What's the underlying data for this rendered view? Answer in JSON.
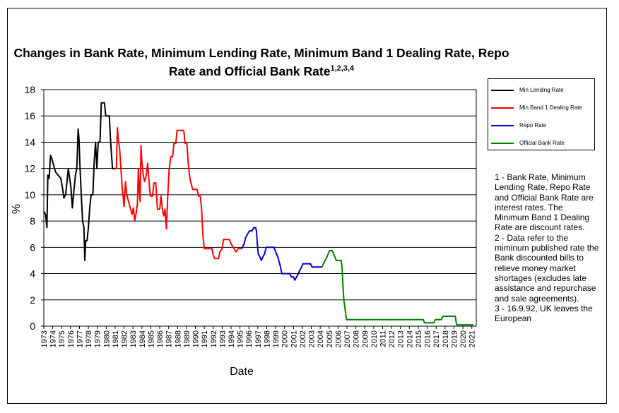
{
  "chart_data": {
    "type": "line",
    "title_main": "Changes in Bank Rate, Minimum Lending Rate, Minimum Band 1 Dealing Rate, Repo Rate and Official Bank Rate",
    "title_sup": "1,2,3,4",
    "xlabel": "Date",
    "ylabel": "%",
    "ylim": [
      0,
      18
    ],
    "yticks": [
      "0",
      "2",
      "4",
      "6",
      "8",
      "10",
      "12",
      "14",
      "16",
      "18"
    ],
    "xlim": [
      1973,
      2021.5
    ],
    "xticks": [
      "1973",
      "1974",
      "1975",
      "1976",
      "1977",
      "1978",
      "1979",
      "1980",
      "1981",
      "1982",
      "1983",
      "1984",
      "1985",
      "1986",
      "1987",
      "1988",
      "1989",
      "1990",
      "1991",
      "1992",
      "1993",
      "1994",
      "1995",
      "1996",
      "1997",
      "1998",
      "1999",
      "2000",
      "2001",
      "2002",
      "2003",
      "2004",
      "2005",
      "2006",
      "2007",
      "2008",
      "2009",
      "2010",
      "2011",
      "2012",
      "2013",
      "2014",
      "2015",
      "2016",
      "2017",
      "2018",
      "2019",
      "2020",
      "2021"
    ],
    "grid": "horizontal",
    "legend_position": "right",
    "series": [
      {
        "name": "Min Lending Rate",
        "color": "#000000",
        "points": [
          [
            1973.0,
            8.75
          ],
          [
            1973.2,
            8.5
          ],
          [
            1973.35,
            7.5
          ],
          [
            1973.45,
            11.5
          ],
          [
            1973.6,
            11.25
          ],
          [
            1973.75,
            13.0
          ],
          [
            1973.9,
            12.75
          ],
          [
            1974.1,
            12.25
          ],
          [
            1974.3,
            11.75
          ],
          [
            1974.6,
            11.5
          ],
          [
            1974.9,
            11.25
          ],
          [
            1975.1,
            10.5
          ],
          [
            1975.25,
            9.75
          ],
          [
            1975.45,
            10.0
          ],
          [
            1975.6,
            11.0
          ],
          [
            1975.75,
            12.0
          ],
          [
            1975.9,
            11.25
          ],
          [
            1976.05,
            10.5
          ],
          [
            1976.2,
            9.0
          ],
          [
            1976.4,
            10.5
          ],
          [
            1976.55,
            11.5
          ],
          [
            1976.7,
            12.0
          ],
          [
            1976.85,
            15.0
          ],
          [
            1976.95,
            14.25
          ],
          [
            1977.05,
            12.25
          ],
          [
            1977.2,
            10.0
          ],
          [
            1977.35,
            8.0
          ],
          [
            1977.5,
            7.5
          ],
          [
            1977.6,
            5.0
          ],
          [
            1977.7,
            6.5
          ],
          [
            1977.85,
            6.5
          ],
          [
            1978.0,
            7.5
          ],
          [
            1978.15,
            9.0
          ],
          [
            1978.3,
            10.0
          ],
          [
            1978.5,
            10.0
          ],
          [
            1978.65,
            12.5
          ],
          [
            1978.8,
            14.0
          ],
          [
            1978.95,
            12.0
          ],
          [
            1979.1,
            14.0
          ],
          [
            1979.3,
            14.0
          ],
          [
            1979.45,
            17.0
          ],
          [
            1979.8,
            17.0
          ],
          [
            1979.95,
            16.0
          ],
          [
            1980.35,
            16.0
          ],
          [
            1980.5,
            14.0
          ],
          [
            1980.7,
            12.0
          ],
          [
            1981.0,
            12.0
          ]
        ]
      },
      {
        "name": "Min Band 1 Dealing Rate",
        "color": "#ff0000",
        "points": [
          [
            1981.0,
            12.0
          ],
          [
            1981.15,
            12.0
          ],
          [
            1981.25,
            15.1
          ],
          [
            1981.35,
            14.25
          ],
          [
            1981.5,
            13.5
          ],
          [
            1981.65,
            12.0
          ],
          [
            1981.8,
            10.5
          ],
          [
            1982.0,
            9.1
          ],
          [
            1982.15,
            11.0
          ],
          [
            1982.3,
            10.0
          ],
          [
            1982.5,
            9.5
          ],
          [
            1982.7,
            9.0
          ],
          [
            1982.9,
            8.5
          ],
          [
            1983.05,
            9.0
          ],
          [
            1983.2,
            8.0
          ],
          [
            1983.35,
            8.6
          ],
          [
            1983.5,
            9.3
          ],
          [
            1983.6,
            12.0
          ],
          [
            1983.7,
            10.5
          ],
          [
            1983.8,
            9.5
          ],
          [
            1983.9,
            13.75
          ],
          [
            1984.0,
            12.5
          ],
          [
            1984.15,
            11.5
          ],
          [
            1984.3,
            11.0
          ],
          [
            1984.5,
            11.5
          ],
          [
            1984.65,
            12.4
          ],
          [
            1984.8,
            11.0
          ],
          [
            1984.95,
            9.9
          ],
          [
            1985.2,
            9.9
          ],
          [
            1985.35,
            10.9
          ],
          [
            1985.55,
            10.9
          ],
          [
            1985.75,
            8.9
          ],
          [
            1986.0,
            8.9
          ],
          [
            1986.15,
            9.9
          ],
          [
            1986.3,
            8.9
          ],
          [
            1986.45,
            8.4
          ],
          [
            1986.6,
            8.9
          ],
          [
            1986.75,
            7.4
          ],
          [
            1986.9,
            9.9
          ],
          [
            1987.05,
            11.9
          ],
          [
            1987.25,
            12.9
          ],
          [
            1987.45,
            12.9
          ],
          [
            1987.6,
            13.9
          ],
          [
            1987.8,
            13.9
          ],
          [
            1987.95,
            14.9
          ],
          [
            1988.7,
            14.9
          ],
          [
            1988.85,
            13.9
          ],
          [
            1989.05,
            13.9
          ],
          [
            1989.2,
            12.4
          ],
          [
            1989.35,
            11.4
          ],
          [
            1989.5,
            10.9
          ],
          [
            1989.7,
            10.4
          ],
          [
            1990.2,
            10.4
          ],
          [
            1990.35,
            9.9
          ],
          [
            1990.55,
            9.9
          ],
          [
            1990.7,
            8.9
          ],
          [
            1990.85,
            6.9
          ],
          [
            1991.0,
            5.9
          ],
          [
            1991.85,
            5.9
          ],
          [
            1992.0,
            5.4
          ],
          [
            1992.15,
            5.15
          ],
          [
            1992.6,
            5.15
          ],
          [
            1992.75,
            5.65
          ],
          [
            1993.0,
            5.9
          ],
          [
            1993.15,
            6.6
          ],
          [
            1993.8,
            6.6
          ],
          [
            1993.95,
            6.35
          ],
          [
            1994.15,
            6.1
          ],
          [
            1994.35,
            5.9
          ],
          [
            1994.55,
            5.65
          ],
          [
            1994.8,
            5.9
          ],
          [
            1995.2,
            5.9
          ]
        ]
      },
      {
        "name": "Repo Rate",
        "color": "#0000cc",
        "points": [
          [
            1995.2,
            5.9
          ],
          [
            1995.45,
            6.25
          ],
          [
            1995.65,
            6.75
          ],
          [
            1995.85,
            7.0
          ],
          [
            1996.05,
            7.25
          ],
          [
            1996.35,
            7.25
          ],
          [
            1996.55,
            7.5
          ],
          [
            1996.75,
            7.5
          ],
          [
            1996.85,
            7.25
          ],
          [
            1996.95,
            6.25
          ],
          [
            1997.05,
            5.5
          ],
          [
            1997.25,
            5.25
          ],
          [
            1997.4,
            5.0
          ],
          [
            1997.55,
            5.25
          ],
          [
            1997.75,
            5.5
          ],
          [
            1997.95,
            6.0
          ],
          [
            1998.8,
            6.0
          ],
          [
            1998.95,
            5.75
          ],
          [
            1999.1,
            5.5
          ],
          [
            1999.25,
            5.25
          ],
          [
            1999.45,
            4.75
          ],
          [
            1999.55,
            4.5
          ],
          [
            1999.7,
            4.0
          ],
          [
            2000.6,
            4.0
          ],
          [
            2000.75,
            3.75
          ],
          [
            2001.0,
            3.75
          ],
          [
            2001.15,
            3.5
          ],
          [
            2001.35,
            3.75
          ],
          [
            2001.55,
            4.0
          ],
          [
            2001.7,
            4.25
          ],
          [
            2001.9,
            4.5
          ],
          [
            2002.05,
            4.75
          ],
          [
            2002.9,
            4.75
          ],
          [
            2003.1,
            4.5
          ],
          [
            2004.2,
            4.5
          ]
        ]
      },
      {
        "name": "Official Bank Rate",
        "color": "#008000",
        "points": [
          [
            2004.2,
            4.5
          ],
          [
            2004.35,
            4.75
          ],
          [
            2004.55,
            5.0
          ],
          [
            2004.75,
            5.25
          ],
          [
            2004.9,
            5.5
          ],
          [
            2005.05,
            5.75
          ],
          [
            2005.35,
            5.75
          ],
          [
            2005.5,
            5.5
          ],
          [
            2005.65,
            5.25
          ],
          [
            2005.8,
            5.0
          ],
          [
            2006.35,
            5.0
          ],
          [
            2006.45,
            4.5
          ],
          [
            2006.55,
            3.0
          ],
          [
            2006.65,
            2.0
          ],
          [
            2006.75,
            1.5
          ],
          [
            2006.85,
            1.0
          ],
          [
            2006.95,
            0.5
          ],
          [
            2015.55,
            0.5
          ],
          [
            2015.7,
            0.25
          ],
          [
            2016.75,
            0.25
          ],
          [
            2016.9,
            0.5
          ],
          [
            2017.6,
            0.5
          ],
          [
            2017.75,
            0.75
          ],
          [
            2019.15,
            0.75
          ],
          [
            2019.3,
            0.1
          ],
          [
            2021.2,
            0.1
          ]
        ]
      }
    ]
  },
  "notes": {
    "note1": "1 - Bank Rate, Minimum Lending Rate, Repo Rate and Official Bank Rate are interest rates.  The Minimum Band 1 Dealing Rate are discount rates.",
    "note2": "2 - Data refer to the miminum published rate the Bank discounted bills to relieve money market shortages (excludes late assistance and repurchase and sale agreements).",
    "note3": "3 - 16.9.92, UK leaves the European"
  }
}
